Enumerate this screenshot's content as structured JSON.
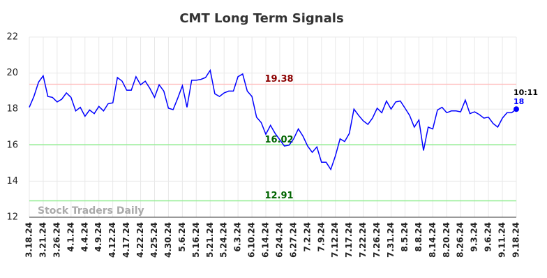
{
  "chart_data": {
    "type": "line",
    "title": "CMT Long Term Signals",
    "watermark": "Stock Traders Daily",
    "end_time": "10:11",
    "color": "#0000ff",
    "grid": true,
    "ylim": [
      12,
      22
    ],
    "yticks": [
      12,
      14,
      16,
      18,
      20,
      22
    ],
    "categories": [
      "3.18.24",
      null,
      null,
      "3.21.24",
      null,
      null,
      "3.26.24",
      null,
      null,
      "4.1.24",
      null,
      null,
      "4.4.24",
      null,
      null,
      "4.9.24",
      null,
      null,
      "4.12.24",
      null,
      null,
      "4.17.24",
      null,
      null,
      "4.22.24",
      null,
      null,
      "4.25.24",
      null,
      null,
      "4.30.24",
      null,
      null,
      "5.6.24",
      null,
      null,
      "5.16.24",
      null,
      null,
      "5.21.24",
      null,
      null,
      "5.24.24",
      null,
      null,
      "6.3.24",
      null,
      null,
      "6.10.24",
      null,
      null,
      "6.14.24",
      null,
      null,
      "6.24.24",
      null,
      null,
      "6.27.24",
      null,
      null,
      "7.2.24",
      null,
      null,
      "7.9.24",
      null,
      null,
      "7.12.24",
      null,
      null,
      "7.17.24",
      null,
      null,
      "7.22.24",
      null,
      null,
      "7.26.24",
      null,
      null,
      "7.31.24",
      null,
      null,
      "8.5.24",
      null,
      null,
      "8.8.24",
      null,
      null,
      "8.14.24",
      null,
      null,
      "8.20.24",
      null,
      null,
      "8.26.24",
      null,
      null,
      "9.3.24",
      null,
      null,
      "9.6.24",
      null,
      null,
      "9.11.24",
      null,
      null,
      "9.18.24"
    ],
    "values": [
      18.1,
      18.7,
      19.5,
      19.85,
      18.7,
      18.65,
      18.4,
      18.55,
      18.9,
      18.65,
      17.9,
      18.1,
      17.6,
      17.95,
      17.75,
      18.15,
      17.9,
      18.3,
      18.35,
      19.75,
      19.55,
      19.05,
      19.05,
      19.8,
      19.35,
      19.55,
      19.15,
      18.65,
      19.35,
      19.0,
      18.05,
      17.97,
      18.6,
      19.3,
      18.1,
      19.6,
      19.6,
      19.65,
      19.75,
      20.15,
      18.85,
      18.7,
      18.9,
      19.0,
      19.0,
      19.8,
      19.95,
      19.0,
      18.7,
      17.55,
      17.25,
      16.6,
      17.1,
      16.65,
      16.3,
      15.95,
      16.0,
      16.35,
      16.9,
      16.5,
      15.95,
      15.6,
      15.9,
      15.05,
      15.05,
      14.65,
      15.4,
      16.35,
      16.2,
      16.65,
      18.0,
      17.65,
      17.35,
      17.15,
      17.5,
      18.05,
      17.8,
      18.45,
      18.0,
      18.4,
      18.45,
      18.05,
      17.65,
      17.0,
      17.4,
      15.7,
      17.0,
      16.9,
      17.95,
      18.1,
      17.8,
      17.9,
      17.9,
      17.85,
      18.5,
      17.75,
      17.85,
      17.7,
      17.5,
      17.55,
      17.2,
      17.0,
      17.5,
      17.8,
      17.8,
      18
    ],
    "hlines": [
      {
        "value": 19.38,
        "color": "#ffbdbd",
        "label_color": "#8b0000"
      },
      {
        "value": 16.02,
        "color": "#90ee90",
        "label_color": "#006400"
      },
      {
        "value": 12.91,
        "color": "#90ee90",
        "label_color": "#006400"
      }
    ]
  }
}
